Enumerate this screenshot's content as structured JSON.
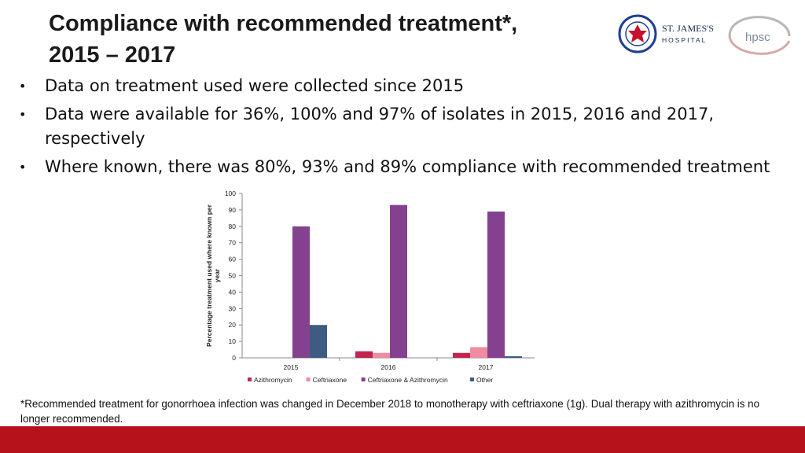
{
  "title": {
    "line1": "Compliance with recommended treatment*,",
    "line2": "2015 – 2017"
  },
  "bullets": [
    "Data on treatment used were collected since 2015",
    "Data were available for 36%, 100% and 97% of isolates in 2015, 2016 and 2017, respectively",
    "Where known, there was 80%, 93% and 89% compliance with recommended treatment"
  ],
  "logos": {
    "st_james": {
      "line1": "ST. JAMES'S",
      "line2": "HOSPITAL"
    },
    "hpsc": "hpsc"
  },
  "footnote": "*Recommended treatment for gonorrhoea infection was changed in December 2018 to monotherapy with ceftriaxone (1g). Dual therapy with azithromycin is no longer recommended.",
  "chart_data": {
    "type": "bar",
    "title": "",
    "xlabel": "",
    "ylabel": "Percentage treatment used where known per year",
    "ylim": [
      0,
      100
    ],
    "yticks": [
      0,
      10,
      20,
      30,
      40,
      50,
      60,
      70,
      80,
      90,
      100
    ],
    "categories": [
      "2015",
      "2016",
      "2017"
    ],
    "series": [
      {
        "name": "Azithromycin",
        "color": "#c0264f",
        "values": [
          0,
          4,
          3
        ]
      },
      {
        "name": "Ceftriaxone",
        "color": "#f08ca2",
        "values": [
          0,
          3,
          6.5
        ]
      },
      {
        "name": "Ceftriaxone & Azithromycin",
        "color": "#84418f",
        "values": [
          80,
          93,
          89
        ]
      },
      {
        "name": "Other",
        "color": "#3e5c82",
        "values": [
          20,
          0,
          1
        ]
      }
    ],
    "legend_position": "bottom"
  },
  "colors": {
    "accent_red": "#b5121b"
  }
}
